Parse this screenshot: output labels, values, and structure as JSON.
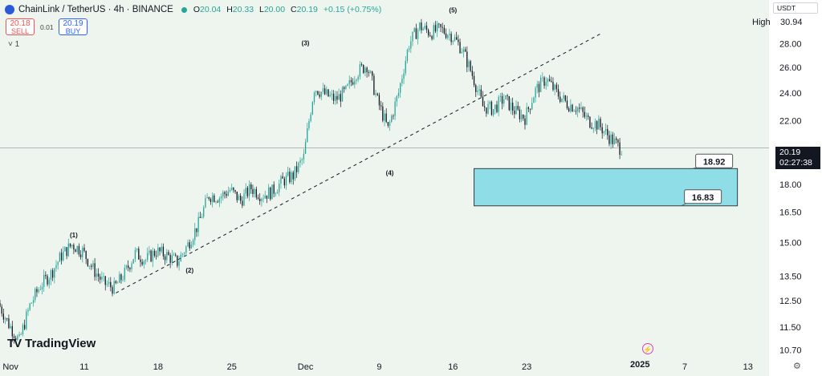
{
  "header": {
    "symbol": "ChainLink / TetherUS · 4h · BINANCE",
    "o_label": "O",
    "o": "20.04",
    "h_label": "H",
    "h": "20.33",
    "l_label": "L",
    "l": "20.00",
    "c_label": "C",
    "c": "20.19",
    "change": "+0.15 (+0.75%)"
  },
  "trade": {
    "sell_price": "20.18",
    "sell_label": "SELL",
    "spread": "0.01",
    "buy_price": "20.19",
    "buy_label": "BUY",
    "collapse": "˅ 1"
  },
  "currency": "USDT",
  "high_label": "High",
  "high_value": "30.94",
  "last_price": "20.19",
  "countdown": "02:27:38",
  "logo_text": "TradingView",
  "year_label": "2025",
  "colors": {
    "up": "#26a69a",
    "down": "#131722",
    "zone": "#8fdde6",
    "zone_border": "#2f3e46"
  },
  "icons": [
    "chainlink-logo-icon",
    "eye-icon",
    "lightning-icon",
    "settings-gear-icon",
    "chevron-down-icon"
  ],
  "chart_data": {
    "type": "candlestick",
    "log_scale": true,
    "grid": false,
    "ylim": [
      10.5,
      31.5
    ],
    "y_ticks": [
      "28.00",
      "26.00",
      "24.00",
      "22.00",
      "18.00",
      "16.50",
      "15.00",
      "13.50",
      "12.50",
      "11.50",
      "10.70"
    ],
    "x_ticks": [
      "Nov",
      "11",
      "18",
      "25",
      "Dec",
      "9",
      "16",
      "23",
      "2025",
      "7",
      "13"
    ],
    "x_dates": [
      "2024-11-04",
      "2024-11-11",
      "2024-11-18",
      "2024-11-25",
      "2024-12-02",
      "2024-12-09",
      "2024-12-16",
      "2024-12-23",
      "2025-01-01",
      "2025-01-07",
      "2025-01-13"
    ],
    "x_range": [
      "2024-11-03",
      "2025-01-15"
    ],
    "price_path": [
      [
        "2024-11-03",
        12.4
      ],
      [
        "2024-11-04",
        11.6
      ],
      [
        "2024-11-05",
        11.0
      ],
      [
        "2024-11-06",
        12.3
      ],
      [
        "2024-11-07",
        13.1
      ],
      [
        "2024-11-08",
        13.6
      ],
      [
        "2024-11-09",
        14.4
      ],
      [
        "2024-11-10",
        14.9
      ],
      [
        "2024-11-11",
        14.6
      ],
      [
        "2024-11-12",
        13.8
      ],
      [
        "2024-11-13",
        13.2
      ],
      [
        "2024-11-14",
        13.0
      ],
      [
        "2024-11-15",
        13.6
      ],
      [
        "2024-11-16",
        14.5
      ],
      [
        "2024-11-17",
        14.2
      ],
      [
        "2024-11-18",
        14.6
      ],
      [
        "2024-11-19",
        14.4
      ],
      [
        "2024-11-20",
        14.1
      ],
      [
        "2024-11-21",
        14.9
      ],
      [
        "2024-11-22",
        15.9
      ],
      [
        "2024-11-23",
        17.4
      ],
      [
        "2024-11-24",
        17.3
      ],
      [
        "2024-11-25",
        17.7
      ],
      [
        "2024-11-26",
        17.1
      ],
      [
        "2024-11-27",
        17.8
      ],
      [
        "2024-11-28",
        17.4
      ],
      [
        "2024-11-29",
        17.6
      ],
      [
        "2024-11-30",
        18.2
      ],
      [
        "2024-12-01",
        18.5
      ],
      [
        "2024-12-02",
        19.6
      ],
      [
        "2024-12-03",
        24.4
      ],
      [
        "2024-12-04",
        23.9
      ],
      [
        "2024-12-05",
        23.5
      ],
      [
        "2024-12-06",
        24.1
      ],
      [
        "2024-12-07",
        25.6
      ],
      [
        "2024-12-08",
        26.2
      ],
      [
        "2024-12-09",
        23.4
      ],
      [
        "2024-12-10",
        21.4
      ],
      [
        "2024-12-11",
        24.0
      ],
      [
        "2024-12-12",
        28.0
      ],
      [
        "2024-12-13",
        29.6
      ],
      [
        "2024-12-14",
        29.0
      ],
      [
        "2024-12-15",
        29.3
      ],
      [
        "2024-12-16",
        28.8
      ],
      [
        "2024-12-17",
        27.6
      ],
      [
        "2024-12-18",
        25.4
      ],
      [
        "2024-12-19",
        23.0
      ],
      [
        "2024-12-20",
        22.8
      ],
      [
        "2024-12-21",
        23.6
      ],
      [
        "2024-12-22",
        22.7
      ],
      [
        "2024-12-23",
        22.2
      ],
      [
        "2024-12-24",
        24.2
      ],
      [
        "2024-12-25",
        25.1
      ],
      [
        "2024-12-26",
        24.0
      ],
      [
        "2024-12-27",
        23.2
      ],
      [
        "2024-12-28",
        22.9
      ],
      [
        "2024-12-29",
        22.0
      ],
      [
        "2024-12-30",
        21.7
      ],
      [
        "2024-12-31",
        20.9
      ],
      [
        "2025-01-01",
        20.2
      ]
    ],
    "wave_labels": [
      {
        "text": "(1)",
        "date": "2024-11-10",
        "price": 15.1,
        "pos": "above"
      },
      {
        "text": "(2)",
        "date": "2024-11-21",
        "price": 14.0,
        "pos": "below"
      },
      {
        "text": "(3)",
        "date": "2024-12-02",
        "price": 27.6,
        "pos": "above"
      },
      {
        "text": "(4)",
        "date": "2024-12-10",
        "price": 19.0,
        "pos": "below"
      },
      {
        "text": "(5)",
        "date": "2024-12-16",
        "price": 30.6,
        "pos": "above"
      }
    ],
    "trendline": [
      [
        "2024-11-14",
        12.8
      ],
      [
        "2024-12-30",
        28.9
      ]
    ],
    "last_price_line": 20.19,
    "target_zone": {
      "from": "2024-12-18",
      "to": "2025-01-12",
      "top": 18.92,
      "bottom": 16.83
    },
    "target_labels": [
      "18.92",
      "16.83"
    ]
  }
}
